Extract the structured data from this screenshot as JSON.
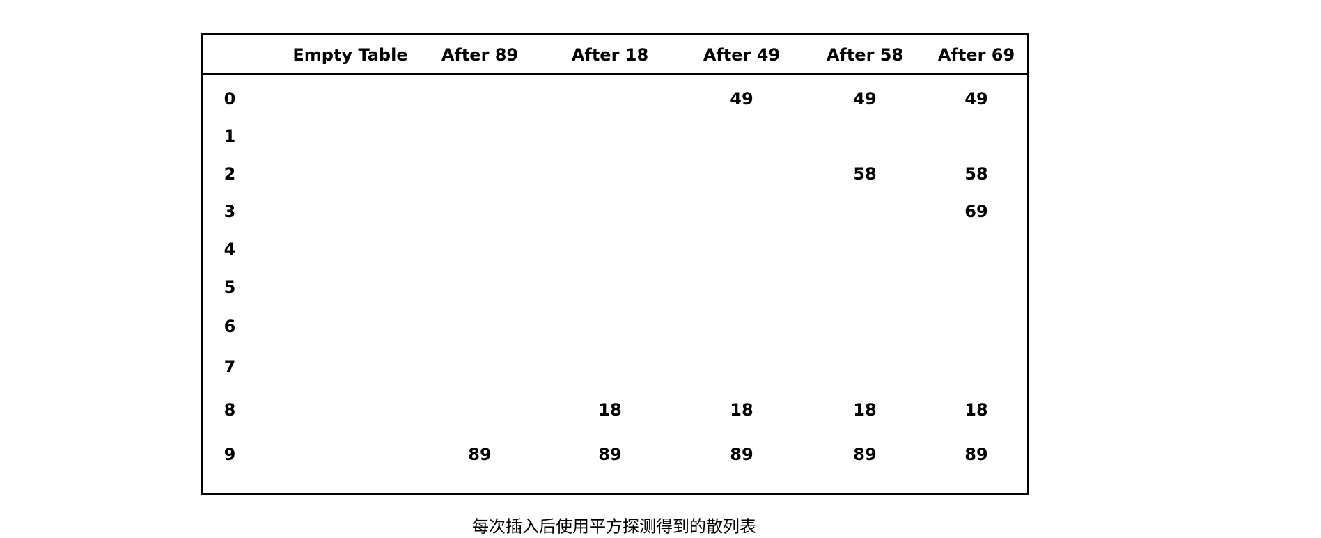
{
  "table": {
    "headers": [
      "Empty Table",
      "After 89",
      "After 18",
      "After 49",
      "After 58",
      "After 69"
    ],
    "rows": [
      {
        "index": "0",
        "cells": [
          "",
          "",
          "",
          "49",
          "49",
          "49"
        ]
      },
      {
        "index": "1",
        "cells": [
          "",
          "",
          "",
          "",
          "",
          ""
        ]
      },
      {
        "index": "2",
        "cells": [
          "",
          "",
          "",
          "",
          "58",
          "58"
        ]
      },
      {
        "index": "3",
        "cells": [
          "",
          "",
          "",
          "",
          "",
          "69"
        ]
      },
      {
        "index": "4",
        "cells": [
          "",
          "",
          "",
          "",
          "",
          ""
        ]
      },
      {
        "index": "5",
        "cells": [
          "",
          "",
          "",
          "",
          "",
          ""
        ]
      },
      {
        "index": "6",
        "cells": [
          "",
          "",
          "",
          "",
          "",
          ""
        ]
      },
      {
        "index": "7",
        "cells": [
          "",
          "",
          "",
          "",
          "",
          ""
        ]
      },
      {
        "index": "8",
        "cells": [
          "",
          "",
          "18",
          "18",
          "18",
          "18"
        ]
      },
      {
        "index": "9",
        "cells": [
          "",
          "89",
          "89",
          "89",
          "89",
          "89"
        ]
      }
    ]
  },
  "caption": "每次插入后使用平方探测得到的散列表"
}
